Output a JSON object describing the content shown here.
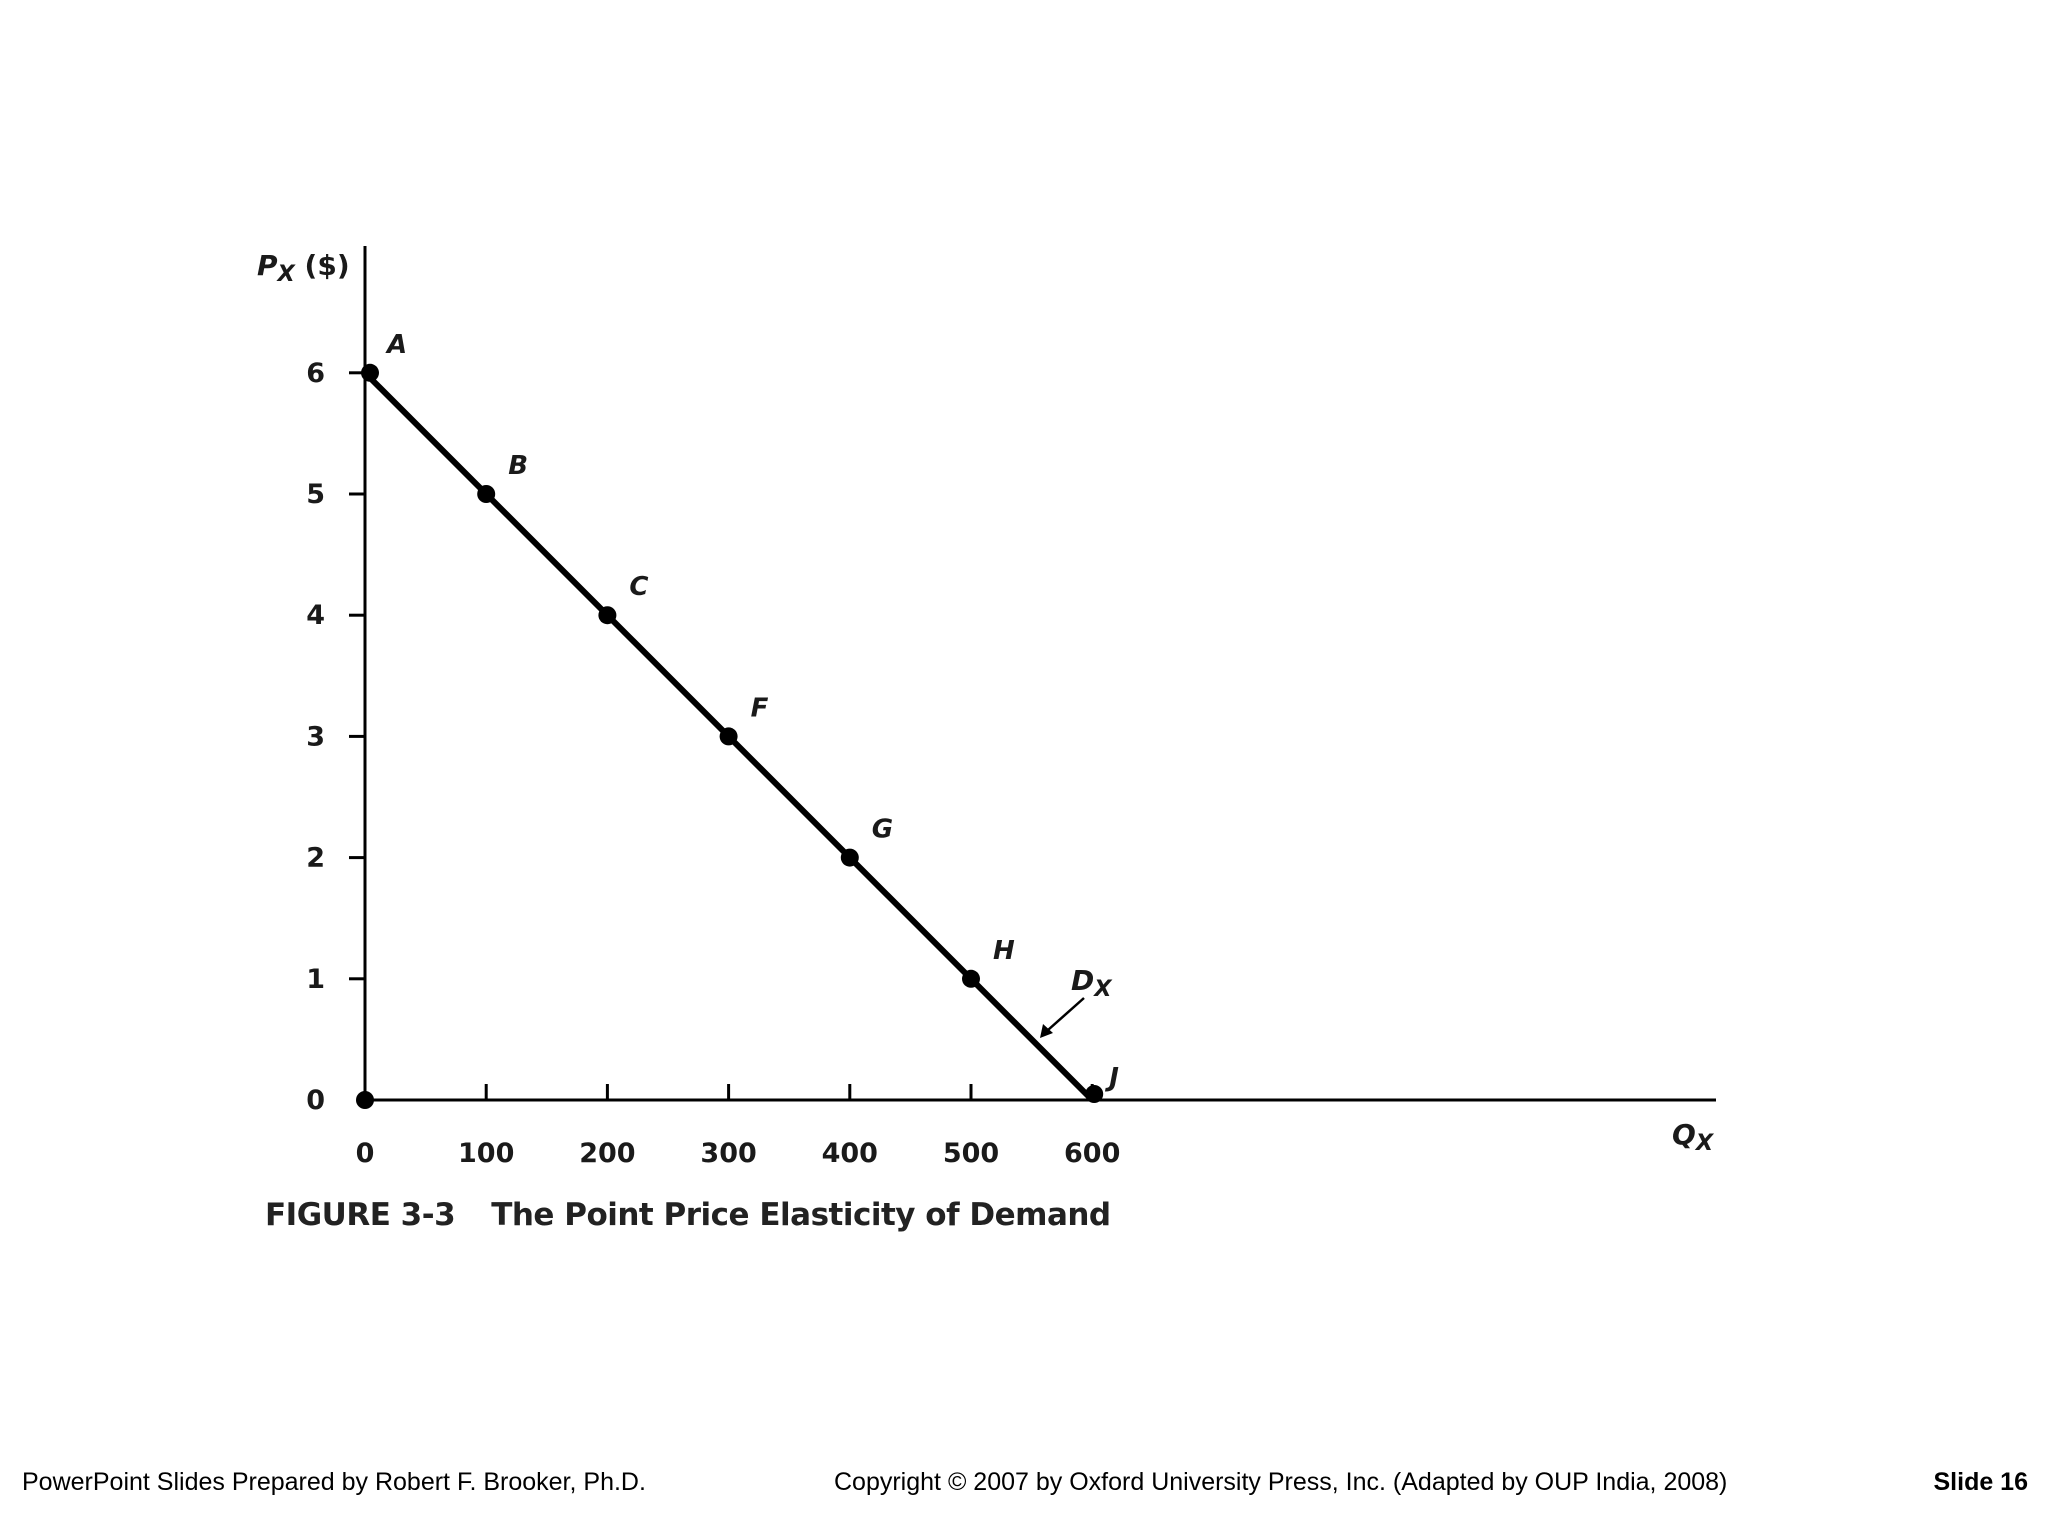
{
  "chart_data": {
    "type": "line",
    "ylabel_main": "P",
    "ylabel_sub": "X",
    "ylabel_unit": " ($)",
    "xlabel_main": "Q",
    "xlabel_sub": "X",
    "xlim": [
      0,
      1100
    ],
    "ylim": [
      0,
      7
    ],
    "x_ticks": [
      0,
      100,
      200,
      300,
      400,
      500,
      600
    ],
    "x_tick_labels": [
      "0",
      "100",
      "200",
      "300",
      "400",
      "500",
      "600"
    ],
    "y_ticks": [
      0,
      1,
      2,
      3,
      4,
      5,
      6
    ],
    "y_tick_labels": [
      "0",
      "1",
      "2",
      "3",
      "4",
      "5",
      "6"
    ],
    "grid": false,
    "series": [
      {
        "name": "D",
        "name_sub": "X",
        "points": [
          {
            "label": "A",
            "x": 0,
            "y": 6
          },
          {
            "label": "B",
            "x": 100,
            "y": 5
          },
          {
            "label": "C",
            "x": 200,
            "y": 4
          },
          {
            "label": "F",
            "x": 300,
            "y": 3
          },
          {
            "label": "G",
            "x": 400,
            "y": 2
          },
          {
            "label": "H",
            "x": 500,
            "y": 1
          },
          {
            "label": "J",
            "x": 600,
            "y": 0
          }
        ]
      }
    ],
    "origin_point": {
      "x": 0,
      "y": 0
    },
    "color": "#000000"
  },
  "caption": {
    "figure_number": "FIGURE 3-3",
    "title": "The Point Price Elasticity of Demand"
  },
  "footer": {
    "left": "PowerPoint Slides Prepared by Robert F. Brooker, Ph.D.",
    "center": "Copyright © 2007 by Oxford University Press, Inc. (Adapted by OUP India, 2008)",
    "right": "Slide 16"
  }
}
